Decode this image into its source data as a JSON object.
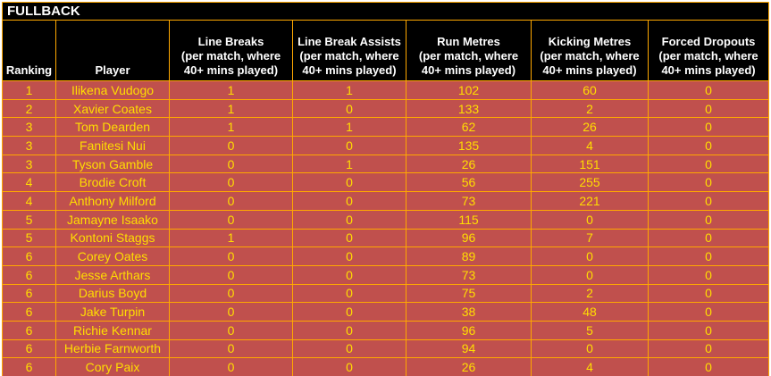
{
  "title": "FULLBACK",
  "colors": {
    "header_bg": "#000000",
    "header_text": "#FFFFFF",
    "row_bg": "#C0504D",
    "row_text": "#FFDE00",
    "grid_border": "#FFA800",
    "page_bg": "#FFFFFF"
  },
  "chart_data": {
    "type": "table",
    "title": "FULLBACK",
    "columns": [
      "Ranking",
      "Player",
      "Line Breaks\n(per match, where\n40+ mins played)",
      "Line Break Assists\n(per match, where\n40+ mins played)",
      "Run Metres\n(per match, where\n40+ mins played)",
      "Kicking Metres\n(per match, where\n40+ mins played)",
      "Forced Dropouts\n(per match, where\n40+ mins played)"
    ],
    "rows": [
      [
        1,
        "Ilikena Vudogo",
        1,
        1,
        102,
        60,
        0
      ],
      [
        2,
        "Xavier Coates",
        1,
        0,
        133,
        2,
        0
      ],
      [
        3,
        "Tom Dearden",
        1,
        1,
        62,
        26,
        0
      ],
      [
        3,
        "Fanitesi Nui",
        0,
        0,
        135,
        4,
        0
      ],
      [
        3,
        "Tyson Gamble",
        0,
        1,
        26,
        151,
        0
      ],
      [
        4,
        "Brodie Croft",
        0,
        0,
        56,
        255,
        0
      ],
      [
        4,
        "Anthony Milford",
        0,
        0,
        73,
        221,
        0
      ],
      [
        5,
        "Jamayne Isaako",
        0,
        0,
        115,
        0,
        0
      ],
      [
        5,
        "Kontoni Staggs",
        1,
        0,
        96,
        7,
        0
      ],
      [
        6,
        "Corey Oates",
        0,
        0,
        89,
        0,
        0
      ],
      [
        6,
        "Jesse Arthars",
        0,
        0,
        73,
        0,
        0
      ],
      [
        6,
        "Darius Boyd",
        0,
        0,
        75,
        2,
        0
      ],
      [
        6,
        "Jake Turpin",
        0,
        0,
        38,
        48,
        0
      ],
      [
        6,
        "Richie Kennar",
        0,
        0,
        96,
        5,
        0
      ],
      [
        6,
        "Herbie Farnworth",
        0,
        0,
        94,
        0,
        0
      ],
      [
        6,
        "Cory Paix",
        0,
        0,
        26,
        4,
        0
      ]
    ]
  }
}
